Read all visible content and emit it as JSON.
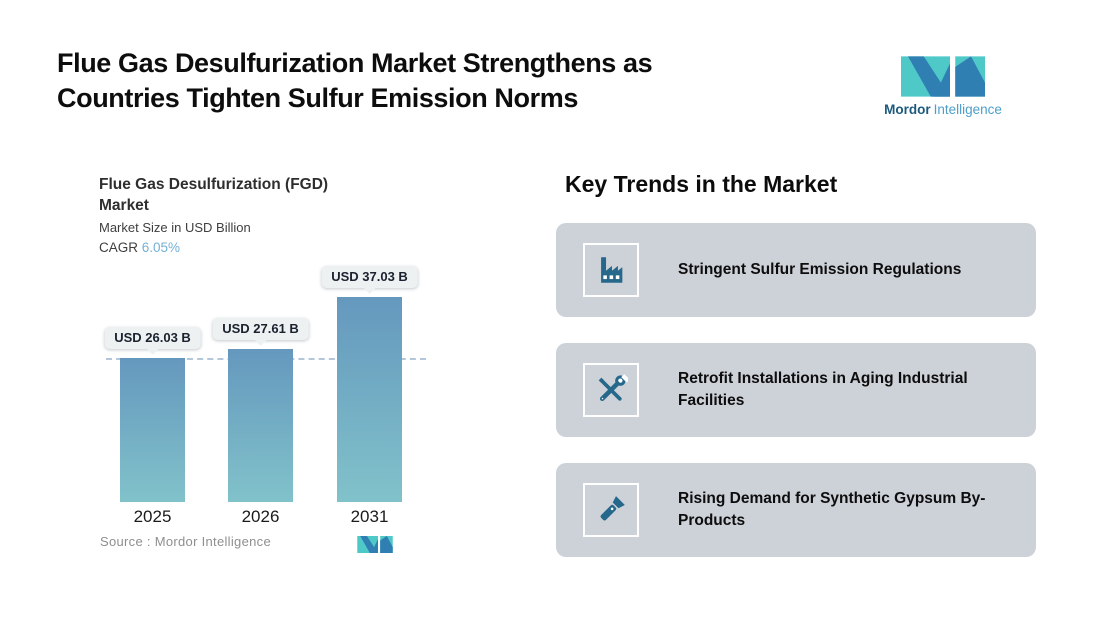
{
  "page": {
    "title_line1": "Flue Gas Desulfurization Market Strengthens as",
    "title_line2": "Countries Tighten Sulfur Emission Norms"
  },
  "brand": {
    "name_bold": "Mordor",
    "name_light": "Intelligence"
  },
  "chart_data": {
    "type": "bar",
    "title_line1": "Flue Gas Desulfurization (FGD)",
    "title_line2": "Market",
    "subtitle": "Market Size in USD Billion",
    "cagr_label": "CAGR",
    "cagr_value": "6.05%",
    "categories": [
      "2025",
      "2026",
      "2031"
    ],
    "values": [
      26.03,
      27.61,
      37.03
    ],
    "value_labels": [
      "USD 26.03 B",
      "USD 27.61 B",
      "USD 37.03 B"
    ],
    "source": "Source :  Mordor Intelligence",
    "ylim": [
      0,
      40
    ],
    "reference_line": {
      "value": 26.03,
      "style": "dashed"
    },
    "grid": "off",
    "legend": "none"
  },
  "key_trends": {
    "title": "Key Trends in the Market",
    "cards": [
      {
        "icon": "factory-icon",
        "text": "Stringent Sulfur Emission Regulations"
      },
      {
        "icon": "tools-icon",
        "text": "Retrofit Installations in Aging Industrial Facilities"
      },
      {
        "icon": "flashlight-icon",
        "text": "Rising Demand for Synthetic Gypsum By-Products"
      }
    ]
  },
  "colors": {
    "bar_top": "#6598be",
    "bar_bottom": "#81c2ca",
    "dashed_line": "#b4c6da",
    "card_bg": "#cdd1d8",
    "icon_color": "#26688c",
    "cagr_value": "#74b0d6",
    "brand_dark": "#1c5a7d",
    "brand_light": "#4d9fca",
    "logo_teal": "#4fc8c8",
    "logo_blue": "#2f7fb3"
  }
}
